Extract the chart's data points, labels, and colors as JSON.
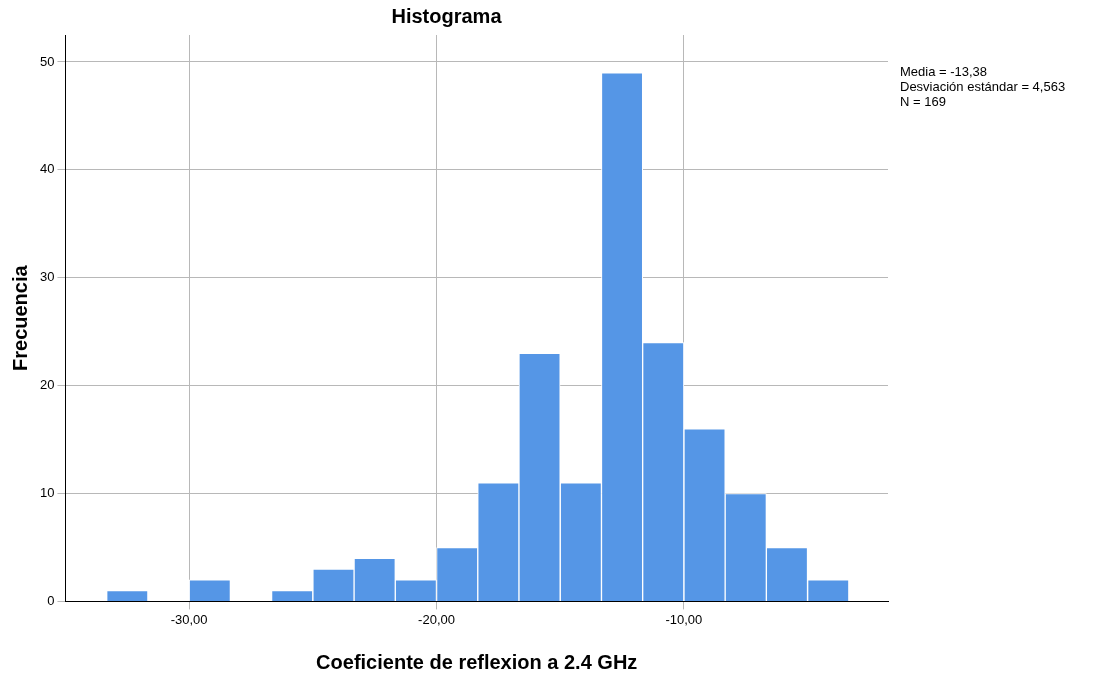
{
  "chart_data": {
    "type": "histogram",
    "title": "Histograma",
    "xlabel": "Coeficiente de reflexion a 2.4 GHz",
    "ylabel": "Frecuencia",
    "bins": [
      -33.33,
      -31.67,
      -30,
      -28.33,
      -26.67,
      -25,
      -23.33,
      -21.67,
      -20,
      -18.33,
      -16.67,
      -15,
      -13.33,
      -11.67,
      -10,
      -8.33,
      -6.67,
      -5,
      -3.33
    ],
    "values": [
      1,
      0,
      2,
      0,
      1,
      3,
      4,
      2,
      5,
      11,
      23,
      11,
      49,
      24,
      16,
      10,
      5,
      2
    ],
    "color": "#5596e6",
    "xlim": [
      -35,
      -1.75
    ],
    "xticks": [
      {
        "value": -30,
        "label": "-30,00"
      },
      {
        "value": -20,
        "label": "-20,00"
      },
      {
        "value": -10,
        "label": "-10,00"
      }
    ],
    "ylim": [
      0,
      52.5
    ],
    "yticks": [
      0,
      10,
      20,
      30,
      40,
      50
    ],
    "grid": true,
    "legend": false,
    "annotations": [
      "Media = -13,38",
      "Desviación estándar = 4,563",
      "N = 169"
    ]
  }
}
